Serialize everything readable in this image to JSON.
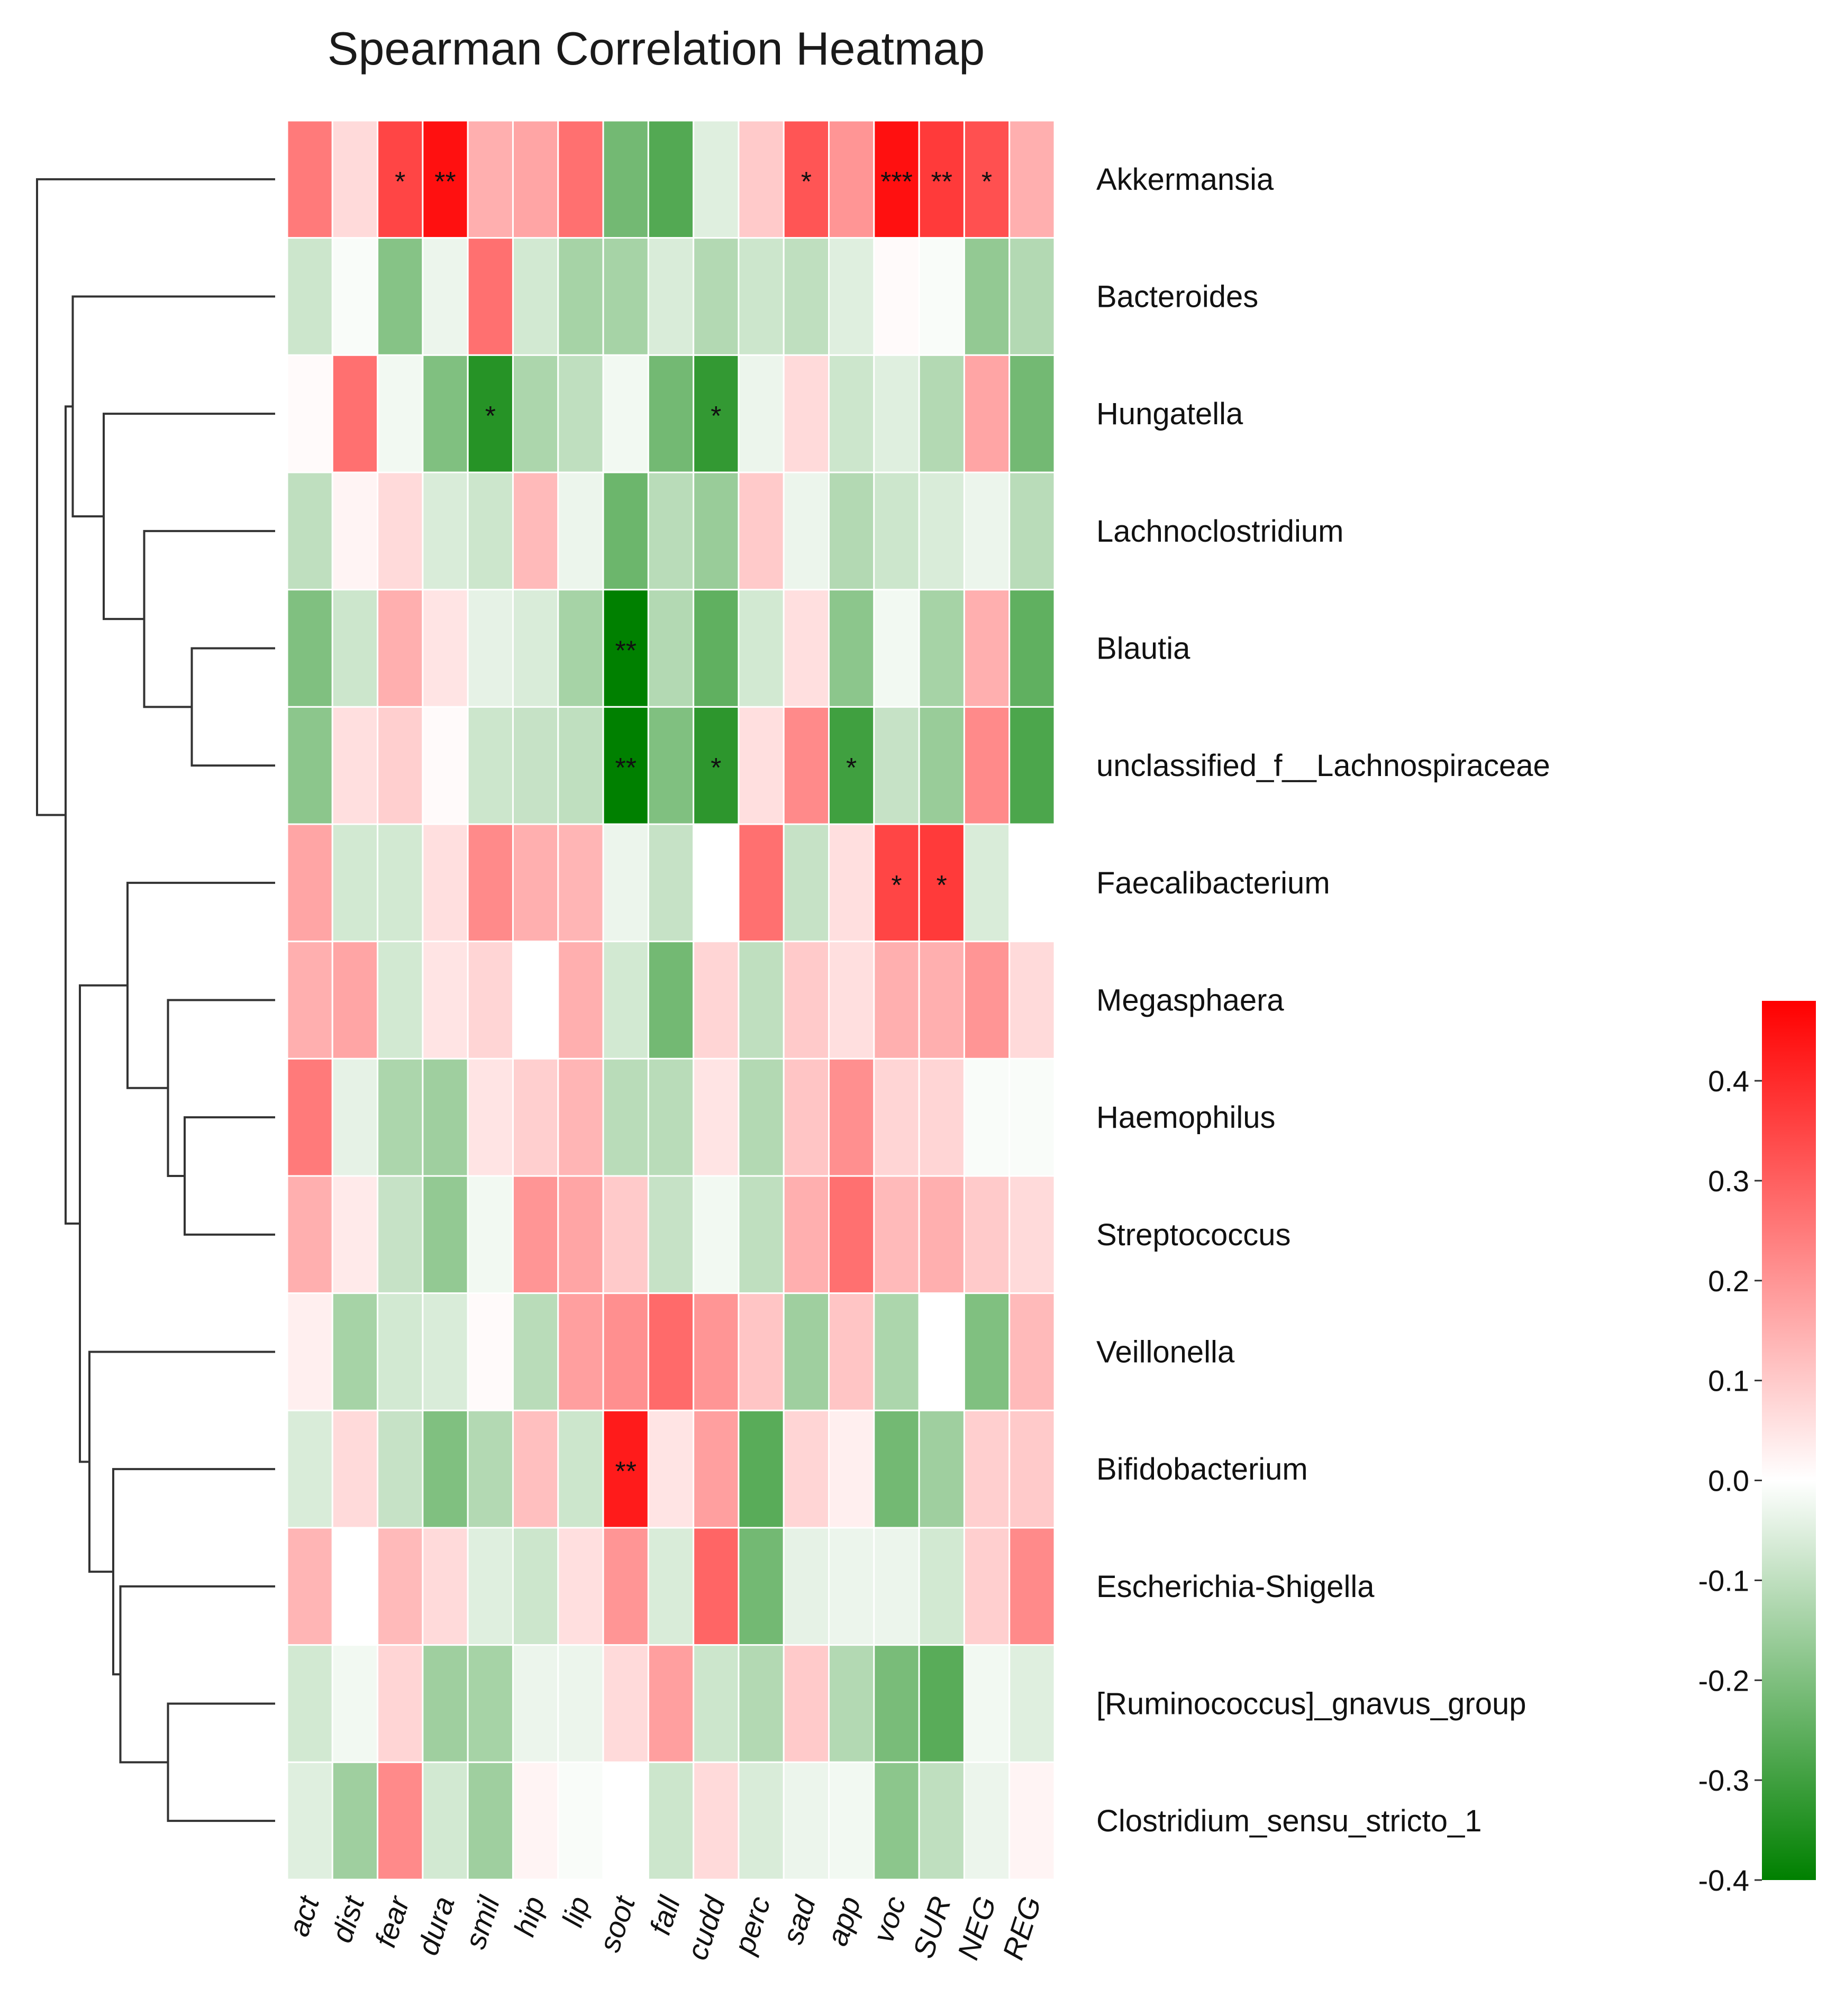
{
  "chart_data": {
    "type": "heatmap",
    "title": "Spearman Correlation Heatmap",
    "columns": [
      "act",
      "dist",
      "fear",
      "dura",
      "smil",
      "hip",
      "lip",
      "soot",
      "fall",
      "cudd",
      "perc",
      "sad",
      "app",
      "voc",
      "SUR",
      "NEG",
      "REG"
    ],
    "rows": [
      "Akkermansia",
      "Bacteroides",
      "Hungatella",
      "Lachnoclostridium",
      "Blautia",
      "unclassified_f__Lachnospiraceae",
      "Faecalibacterium",
      "Megasphaera",
      "Haemophilus",
      "Streptococcus",
      "Veillonella",
      "Bifidobacterium",
      "Escherichia-Shigella",
      "[Ruminococcus]_gnavus_group",
      "Clostridium_sensu_stricto_1"
    ],
    "values": [
      [
        0.25,
        0.07,
        0.35,
        0.45,
        0.15,
        0.17,
        0.27,
        -0.22,
        -0.27,
        -0.05,
        0.1,
        0.32,
        0.2,
        0.45,
        0.37,
        0.33,
        0.15
      ],
      [
        -0.08,
        -0.01,
        -0.19,
        -0.03,
        0.27,
        -0.07,
        -0.14,
        -0.14,
        -0.06,
        -0.12,
        -0.08,
        -0.1,
        -0.05,
        0.01,
        -0.01,
        -0.17,
        -0.12
      ],
      [
        0.01,
        0.27,
        -0.02,
        -0.2,
        -0.34,
        -0.13,
        -0.1,
        -0.02,
        -0.22,
        -0.32,
        -0.03,
        0.07,
        -0.08,
        -0.05,
        -0.12,
        0.17,
        -0.22
      ],
      [
        -0.1,
        0.02,
        0.07,
        -0.06,
        -0.08,
        0.13,
        -0.03,
        -0.23,
        -0.11,
        -0.16,
        0.1,
        -0.03,
        -0.12,
        -0.08,
        -0.06,
        -0.03,
        -0.11
      ],
      [
        -0.2,
        -0.08,
        0.15,
        0.05,
        -0.04,
        -0.06,
        -0.14,
        -0.4,
        -0.12,
        -0.25,
        -0.07,
        0.06,
        -0.18,
        -0.02,
        -0.14,
        0.15,
        -0.25
      ],
      [
        -0.18,
        0.06,
        0.09,
        0.01,
        -0.08,
        -0.09,
        -0.1,
        -0.42,
        -0.2,
        -0.33,
        0.06,
        0.22,
        -0.3,
        -0.09,
        -0.16,
        0.22,
        -0.28
      ],
      [
        0.17,
        -0.07,
        -0.07,
        0.06,
        0.22,
        0.15,
        0.14,
        -0.03,
        -0.09,
        0.0,
        0.27,
        -0.09,
        0.06,
        0.35,
        0.37,
        -0.06,
        0.0
      ],
      [
        0.15,
        0.17,
        -0.07,
        0.05,
        0.08,
        0.0,
        0.15,
        -0.07,
        -0.22,
        0.08,
        -0.1,
        0.1,
        0.06,
        0.15,
        0.15,
        0.2,
        0.07
      ],
      [
        0.25,
        -0.04,
        -0.13,
        -0.15,
        0.05,
        0.09,
        0.14,
        -0.11,
        -0.11,
        0.05,
        -0.12,
        0.11,
        0.21,
        0.08,
        0.08,
        -0.01,
        -0.01
      ],
      [
        0.15,
        0.04,
        -0.09,
        -0.17,
        -0.02,
        0.2,
        0.17,
        0.1,
        -0.09,
        -0.02,
        -0.1,
        0.15,
        0.27,
        0.13,
        0.15,
        0.1,
        0.07
      ],
      [
        0.03,
        -0.14,
        -0.07,
        -0.06,
        0.01,
        -0.11,
        0.18,
        0.21,
        0.28,
        0.2,
        0.11,
        -0.15,
        0.11,
        -0.13,
        0.0,
        -0.2,
        0.13
      ],
      [
        -0.06,
        0.07,
        -0.09,
        -0.2,
        -0.12,
        0.12,
        -0.08,
        0.43,
        0.05,
        0.18,
        -0.26,
        0.08,
        0.03,
        -0.22,
        -0.15,
        0.09,
        0.1
      ],
      [
        0.14,
        0.0,
        0.13,
        0.07,
        -0.05,
        -0.08,
        0.06,
        0.2,
        -0.06,
        0.29,
        -0.22,
        -0.04,
        -0.03,
        -0.03,
        -0.07,
        0.09,
        0.22
      ],
      [
        -0.07,
        -0.02,
        0.08,
        -0.15,
        -0.14,
        -0.03,
        -0.03,
        0.07,
        0.18,
        -0.08,
        -0.12,
        0.1,
        -0.12,
        -0.21,
        -0.26,
        -0.02,
        -0.05
      ],
      [
        -0.05,
        -0.15,
        0.22,
        -0.07,
        -0.15,
        0.02,
        -0.01,
        0.0,
        -0.08,
        0.07,
        -0.06,
        -0.03,
        -0.02,
        -0.18,
        -0.1,
        -0.03,
        0.02
      ]
    ],
    "significance": [
      [
        "",
        "",
        "*",
        "**",
        "",
        "",
        "",
        "",
        "",
        "",
        "",
        "*",
        "",
        "***",
        "**",
        "*",
        ""
      ],
      [
        "",
        "",
        "",
        "",
        "",
        "",
        "",
        "",
        "",
        "",
        "",
        "",
        "",
        "",
        "",
        "",
        ""
      ],
      [
        "",
        "",
        "",
        "",
        "*",
        "",
        "",
        "",
        "",
        "*",
        "",
        "",
        "",
        "",
        "",
        "",
        ""
      ],
      [
        "",
        "",
        "",
        "",
        "",
        "",
        "",
        "",
        "",
        "",
        "",
        "",
        "",
        "",
        "",
        "",
        ""
      ],
      [
        "",
        "",
        "",
        "",
        "",
        "",
        "",
        "**",
        "",
        "",
        "",
        "",
        "",
        "",
        "",
        "",
        ""
      ],
      [
        "",
        "",
        "",
        "",
        "",
        "",
        "",
        "**",
        "",
        "*",
        "",
        "",
        "*",
        "",
        "",
        "",
        ""
      ],
      [
        "",
        "",
        "",
        "",
        "",
        "",
        "",
        "",
        "",
        "",
        "",
        "",
        "",
        "*",
        "*",
        "",
        ""
      ],
      [
        "",
        "",
        "",
        "",
        "",
        "",
        "",
        "",
        "",
        "",
        "",
        "",
        "",
        "",
        "",
        "",
        ""
      ],
      [
        "",
        "",
        "",
        "",
        "",
        "",
        "",
        "",
        "",
        "",
        "",
        "",
        "",
        "",
        "",
        "",
        ""
      ],
      [
        "",
        "",
        "",
        "",
        "",
        "",
        "",
        "",
        "",
        "",
        "",
        "",
        "",
        "",
        "",
        "",
        ""
      ],
      [
        "",
        "",
        "",
        "",
        "",
        "",
        "",
        "",
        "",
        "",
        "",
        "",
        "",
        "",
        "",
        "",
        ""
      ],
      [
        "",
        "",
        "",
        "",
        "",
        "",
        "",
        "**",
        "",
        "",
        "",
        "",
        "",
        "",
        "",
        "",
        ""
      ],
      [
        "",
        "",
        "",
        "",
        "",
        "",
        "",
        "",
        "",
        "",
        "",
        "",
        "",
        "",
        "",
        "",
        ""
      ],
      [
        "",
        "",
        "",
        "",
        "",
        "",
        "",
        "",
        "",
        "",
        "",
        "",
        "",
        "",
        "",
        "",
        ""
      ],
      [
        "",
        "",
        "",
        "",
        "",
        "",
        "",
        "",
        "",
        "",
        "",
        "",
        "",
        "",
        "",
        "",
        ""
      ]
    ],
    "colorbar": {
      "min": -0.4,
      "max": 0.48,
      "ticks": [
        0.4,
        0.3,
        0.2,
        0.1,
        0.0,
        -0.1,
        -0.2,
        -0.3,
        -0.4
      ],
      "tick_labels": [
        "0.4",
        "0.3",
        "0.2",
        "0.1",
        "0.0",
        "-0.1",
        "-0.2",
        "-0.3",
        "-0.4"
      ],
      "low_color": "#008000",
      "mid_color": "#ffffff",
      "high_color": "#ff0000"
    },
    "dendrogram": {
      "merges": [
        [
          4,
          5,
          0.35
        ],
        [
          3,
          15,
          0.55
        ],
        [
          2,
          16,
          0.72
        ],
        [
          1,
          17,
          0.85
        ],
        [
          8,
          9,
          0.38
        ],
        [
          7,
          19,
          0.45
        ],
        [
          6,
          20,
          0.62
        ],
        [
          13,
          14,
          0.45
        ],
        [
          12,
          22,
          0.65
        ],
        [
          11,
          23,
          0.68
        ],
        [
          10,
          24,
          0.78
        ],
        [
          21,
          25,
          0.82
        ],
        [
          18,
          26,
          0.88
        ],
        [
          0,
          27,
          1.0
        ]
      ]
    }
  }
}
